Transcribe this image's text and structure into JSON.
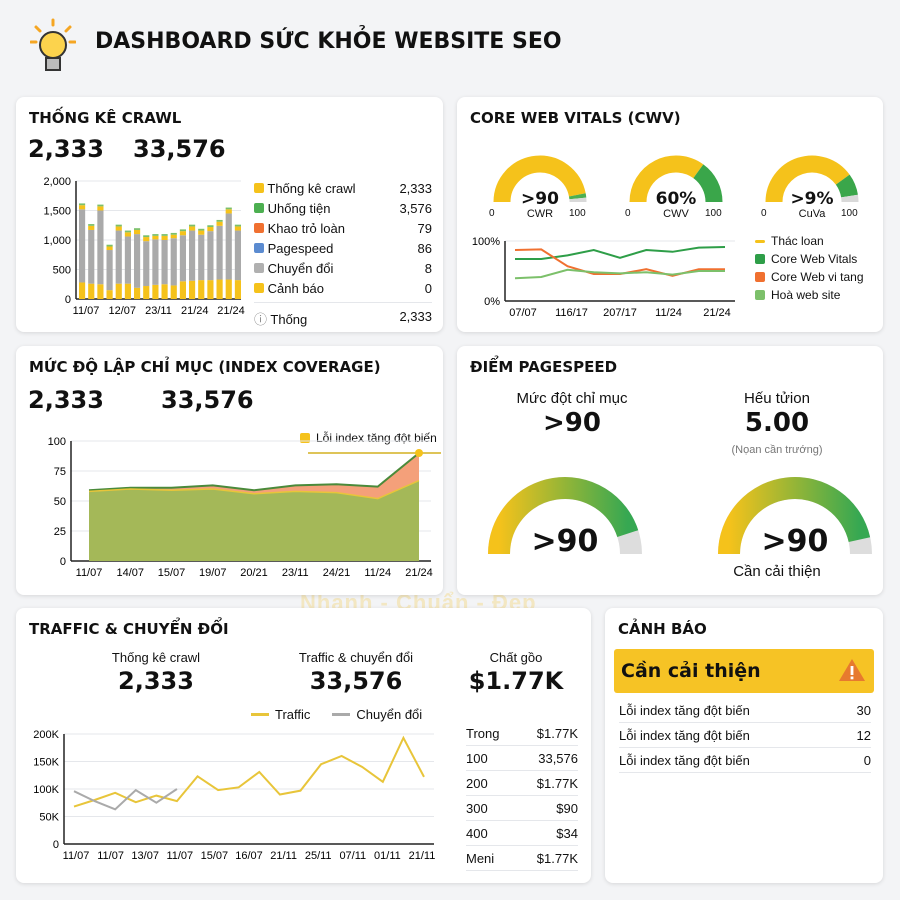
{
  "header": {
    "title": "DASHBOARD SỨC KHỎE WEBSITE SEO",
    "icon": "lightbulb-icon"
  },
  "watermark": "Nhanh - Chuẩn - Đẹp",
  "crawl": {
    "title": "THỐNG KÊ CRAWL",
    "stat1": "2,333",
    "stat2": "33,576",
    "legend": [
      {
        "label": "Thống kê crawl",
        "value": "2,333",
        "color": "#f5c21b"
      },
      {
        "label": "Uhống tiện",
        "value": "3,576",
        "color": "#4caf50"
      },
      {
        "label": "Khao trỏ loàn",
        "value": "79",
        "color": "#f07030"
      },
      {
        "label": "Pagespeed",
        "value": "86",
        "color": "#5b8bd0"
      },
      {
        "label": "Chuyển đổi",
        "value": "8",
        "color": "#b0b0b0"
      },
      {
        "label": "Cảnh báo",
        "value": "0",
        "color": "#f5c21b"
      }
    ],
    "total": {
      "label": "Thống",
      "value": "2,333"
    }
  },
  "cwv": {
    "title": "CORE WEB VITALS (CWV)",
    "gauges": [
      {
        "value": ">90",
        "label": "CWR",
        "min": "0",
        "max": "100",
        "segments": [
          {
            "to": 0.94,
            "color": "#f5c21b"
          },
          {
            "to": 0.97,
            "color": "#4caf50"
          },
          {
            "to": 1,
            "color": "#d9d9d9"
          }
        ]
      },
      {
        "value": "60%",
        "label": "CWV",
        "min": "0",
        "max": "100",
        "segments": [
          {
            "to": 0.7,
            "color": "#f5c21b"
          },
          {
            "to": 1,
            "color": "#3aa64a"
          }
        ]
      },
      {
        "value": ">9%",
        "label": "CuVa",
        "min": "0",
        "max": "100",
        "segments": [
          {
            "to": 0.8,
            "color": "#f5c21b"
          },
          {
            "to": 0.95,
            "color": "#3aa64a"
          },
          {
            "to": 1,
            "color": "#d9d9d9"
          }
        ]
      }
    ],
    "legend": [
      {
        "label": "Thác loan",
        "color": "#f5c21b",
        "type": "line"
      },
      {
        "label": "Core Web Vitals",
        "color": "#2e9e48"
      },
      {
        "label": "Core Web vi tang",
        "color": "#f07030"
      },
      {
        "label": "Hoà web site",
        "color": "#7cc06a"
      }
    ]
  },
  "index": {
    "title": "MỨC ĐỘ LẬP CHỈ MỤC (INDEX COVERAGE)",
    "stat1": "2,333",
    "stat2": "33,576",
    "legend": "Lỗi index tăng đột biến"
  },
  "pagespeed": {
    "title": "ĐIỂM PAGESPEED",
    "left": {
      "label": "Mức đột chỉ mục",
      "value": ">90",
      "gauge_value": ">90",
      "fill": 0.9
    },
    "right": {
      "label": "Hếu tửion",
      "value": "5.00",
      "note": "(Nọan cần trướng)",
      "gauge_value": ">90",
      "fill": 0.93,
      "caption": "Cần cải thiện"
    }
  },
  "traffic": {
    "title": "TRAFFIC & CHUYỂN ĐỔI",
    "kpis": [
      {
        "label": "Thống kê crawl",
        "value": "2,333"
      },
      {
        "label": "Traffic & chuyển đổi",
        "value": "33,576"
      },
      {
        "label": "Chất gồo",
        "value": "$1.77K"
      }
    ],
    "legend": [
      {
        "label": "Traffic",
        "color": "#e8c53a"
      },
      {
        "label": "Chuyển đổi",
        "color": "#aaaaaa"
      }
    ],
    "table": [
      [
        "Trong",
        "$1.77K"
      ],
      [
        "100",
        "33,576"
      ],
      [
        "200",
        "$1.77K"
      ],
      [
        "300",
        "$90"
      ],
      [
        "400",
        "$34"
      ],
      [
        "Meni",
        "$1.77K"
      ]
    ]
  },
  "alerts": {
    "title": "CẢNH BÁO",
    "banner": "Cần cải thiện",
    "icon": "warning-icon",
    "rows": [
      [
        "Lỗi index tăng đột biến",
        "30"
      ],
      [
        "Lỗi index tăng đột biến",
        "12"
      ],
      [
        "Lỗi index tăng đột biến",
        "0"
      ]
    ]
  },
  "chart_data": [
    {
      "type": "bar",
      "stacked": true,
      "ylim": [
        0,
        2000
      ],
      "yticks": [
        "0",
        "500",
        "1,000",
        "1,500",
        "2,000"
      ],
      "xticks": [
        "11/07",
        "12/07",
        "23/11",
        "21/24",
        "21/24"
      ],
      "series": [
        {
          "color": "#f5c21b",
          "values": [
            280,
            260,
            250,
            150,
            260,
            260,
            190,
            220,
            240,
            250,
            230,
            300,
            310,
            320,
            320,
            330,
            330,
            320
          ]
        },
        {
          "color": "#aaaaaa",
          "values": [
            1240,
            910,
            1250,
            680,
            900,
            800,
            910,
            760,
            770,
            750,
            800,
            780,
            850,
            770,
            830,
            910,
            1120,
            840
          ]
        },
        {
          "color": "#f5c21b",
          "values": [
            70,
            70,
            70,
            60,
            70,
            70,
            70,
            70,
            60,
            70,
            60,
            70,
            70,
            70,
            70,
            70,
            70,
            70
          ]
        },
        {
          "color": "#7cc06a",
          "values": [
            30,
            30,
            30,
            30,
            30,
            30,
            30,
            30,
            30,
            30,
            30,
            30,
            30,
            30,
            30,
            30,
            30,
            30
          ]
        }
      ]
    },
    {
      "type": "line",
      "ylim": [
        0,
        100
      ],
      "yticks": [
        "0%",
        "100%"
      ],
      "xticks": [
        "07/07",
        "116/17",
        "207/17",
        "11/24",
        "21/24"
      ],
      "series": [
        {
          "color": "#2e9e48",
          "values": [
            70,
            70,
            76,
            85,
            72,
            85,
            82,
            89,
            90
          ]
        },
        {
          "color": "#f07030",
          "values": [
            85,
            86,
            58,
            45,
            45,
            53,
            42,
            53,
            53
          ]
        },
        {
          "color": "#7cc06a",
          "values": [
            38,
            40,
            52,
            48,
            46,
            48,
            44,
            50,
            50
          ]
        }
      ]
    },
    {
      "type": "area",
      "ylim": [
        0,
        100
      ],
      "yticks": [
        "0",
        "25",
        "50",
        "75",
        "100"
      ],
      "xticks": [
        "11/07",
        "14/07",
        "15/07",
        "19/07",
        "20/21",
        "23/11",
        "24/21",
        "11/24",
        "21/24"
      ],
      "series": [
        {
          "color": "#f4a07a",
          "values": [
            59,
            61,
            61,
            63,
            59,
            63,
            64,
            62,
            90
          ]
        },
        {
          "color": "#a4b858",
          "values": [
            58,
            60,
            59,
            60,
            56,
            58,
            57,
            52,
            67
          ]
        }
      ],
      "threshold": 90
    },
    {
      "type": "line",
      "ylim": [
        0,
        200
      ],
      "yticks": [
        "0",
        "50K",
        "100K",
        "150K",
        "200K"
      ],
      "xticks": [
        "11/07",
        "11/07",
        "13/07",
        "11/07",
        "15/07",
        "16/07",
        "21/11",
        "25/11",
        "07/11",
        "01/11",
        "21/11"
      ],
      "series": [
        {
          "name": "Traffic",
          "color": "#e8c53a",
          "values": [
            68,
            80,
            93,
            76,
            88,
            78,
            123,
            98,
            103,
            131,
            90,
            97,
            145,
            160,
            140,
            113,
            193,
            122
          ]
        },
        {
          "name": "Chuyển đổi",
          "color": "#aaaaaa",
          "values": [
            96,
            78,
            63,
            98,
            75,
            100
          ]
        }
      ]
    }
  ]
}
